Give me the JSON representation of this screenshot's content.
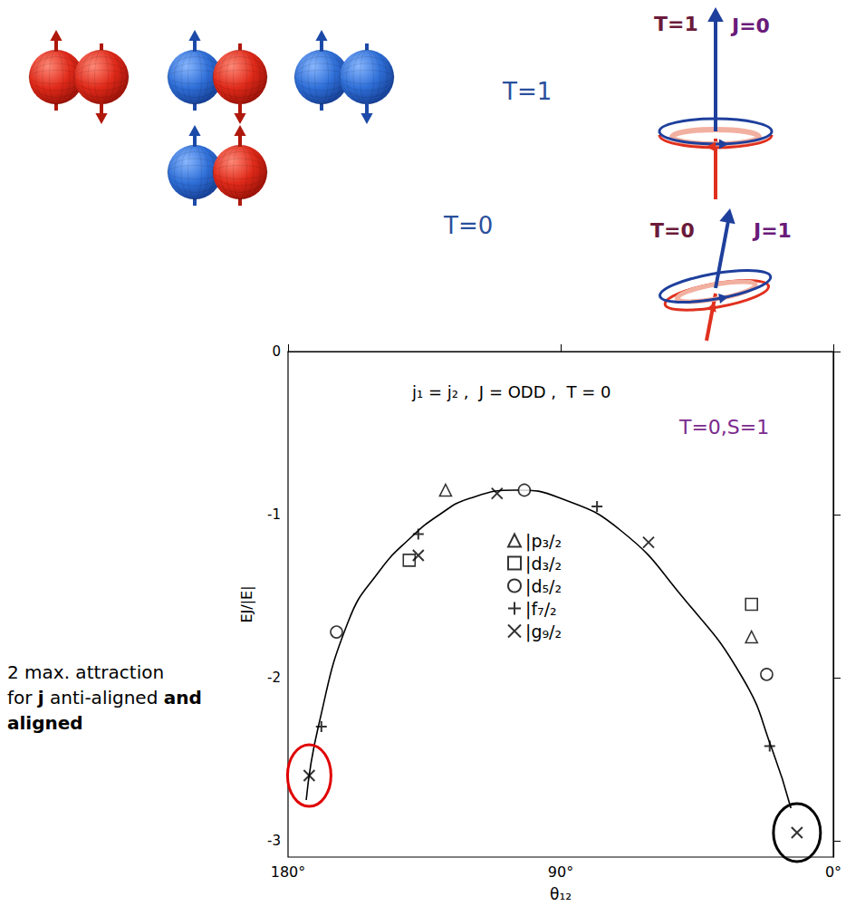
{
  "diagram": {
    "row_1": {
      "label": "T=1",
      "icon_labels": [
        "T=1",
        "J=0"
      ]
    },
    "row_2": {
      "label": "T=0",
      "icon_labels": [
        "T=0",
        "J=1"
      ]
    }
  },
  "annotation": {
    "lines": [
      [
        {
          "text": "2 max. attraction",
          "bold": false
        }
      ],
      [
        {
          "text": "for ",
          "bold": false
        },
        {
          "text": "j",
          "bold": true
        },
        {
          "text": " anti-aligned ",
          "bold": false
        },
        {
          "text": "and",
          "bold": true
        }
      ],
      [
        {
          "text": "aligned",
          "bold": true
        }
      ]
    ]
  },
  "chart_data": {
    "type": "scatter",
    "title": "j₁ = j₂ ,  J = ODD ,  T = 0",
    "subtitle": "T=0,S=1",
    "x_label": "θ₁₂",
    "y_label": "EJ/|E|",
    "xlim": [
      180,
      0
    ],
    "xticks": [
      {
        "value": 180,
        "label": "180°"
      },
      {
        "value": 90,
        "label": "90°"
      },
      {
        "value": 0,
        "label": "0°"
      }
    ],
    "ylim": [
      -3.1,
      0
    ],
    "yticks": [
      0,
      -1,
      -2,
      -3
    ],
    "grid": false,
    "legend": "center",
    "series": [
      {
        "name": "|p₃/₂",
        "marker": "triangle",
        "color": "#000000",
        "x": [
          128,
          27
        ],
        "values": [
          -0.85,
          -1.75
        ]
      },
      {
        "name": "|d₃/₂",
        "marker": "square",
        "color": "#000000",
        "x": [
          140,
          27
        ],
        "values": [
          -1.28,
          -1.55
        ]
      },
      {
        "name": "|d₅/₂",
        "marker": "circle",
        "color": "#000000",
        "x": [
          164,
          102,
          22
        ],
        "values": [
          -1.72,
          -0.85,
          -1.98
        ]
      },
      {
        "name": "|f₇/₂",
        "marker": "plus",
        "color": "#000000",
        "x": [
          169,
          137,
          78,
          21
        ],
        "values": [
          -2.3,
          -1.12,
          -0.95,
          -2.42
        ]
      },
      {
        "name": "|g₉/₂",
        "marker": "x",
        "color": "#000000",
        "x": [
          173,
          137,
          111,
          61,
          12
        ],
        "values": [
          -2.6,
          -1.25,
          -0.87,
          -1.17,
          -2.95
        ]
      },
      {
        "type": "line",
        "color": "#000000",
        "line_style": "solid",
        "x": [
          174,
          170,
          160,
          150,
          140,
          130,
          120,
          105,
          90,
          70,
          50,
          30,
          20,
          14
        ],
        "values": [
          -2.75,
          -2.3,
          -1.65,
          -1.35,
          -1.15,
          -1.0,
          -0.9,
          -0.85,
          -0.9,
          -1.1,
          -1.5,
          -2.0,
          -2.45,
          -2.8
        ]
      }
    ]
  }
}
